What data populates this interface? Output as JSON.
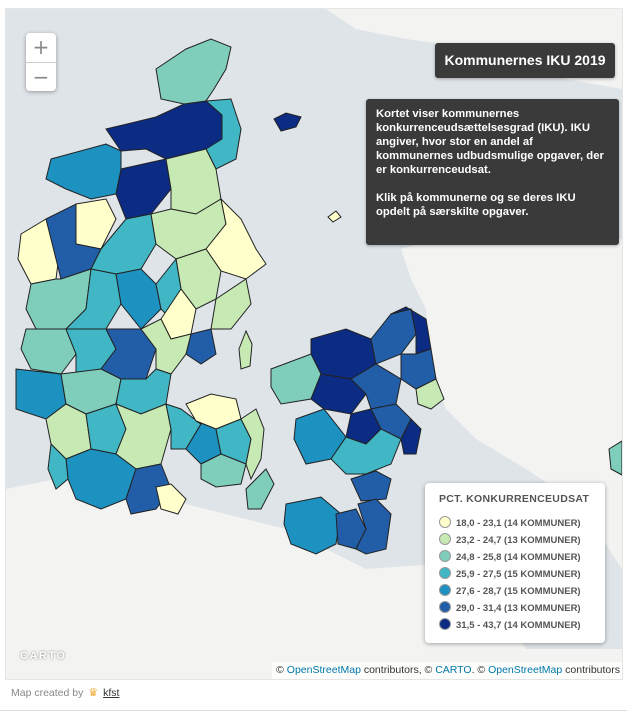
{
  "title": "Kommunernes IKU 2019",
  "info": {
    "paragraph1": "Kortet viser kommunernes konkurrenceudsættelsesgrad (IKU). IKU angiver, hvor stor en andel af kommunernes udbudsmulige opgaver, der er konkurrenceudsat.",
    "paragraph2": "Klik på kommunerne og se deres IKU opdelt på særskilte opgaver."
  },
  "zoom": {
    "in_label": "+",
    "out_label": "−"
  },
  "legend": {
    "title": "PCT. KONKURRENCEUDSAT",
    "items": [
      {
        "label": "18,0 - 23,1 (14 KOMMUNER)",
        "color": "#ffffcc"
      },
      {
        "label": "23,2 - 24,7 (13 KOMMUNER)",
        "color": "#c7e9b4"
      },
      {
        "label": "24,8 - 25,8 (14 KOMMUNER)",
        "color": "#7fcdbb"
      },
      {
        "label": "25,9 - 27,5 (15 KOMMUNER)",
        "color": "#41b6c4"
      },
      {
        "label": "27,6 - 28,7 (15 KOMMUNER)",
        "color": "#1d91c0"
      },
      {
        "label": "29,0 - 31,4 (13 KOMMUNER)",
        "color": "#225ea8"
      },
      {
        "label": "31,5 - 43,7 (14 KOMMUNER)",
        "color": "#0c2c84"
      }
    ]
  },
  "basemap": {
    "logo": "CARTO",
    "water_color": "#dfe4e8",
    "land_color": "#f3f3f1"
  },
  "attribution": {
    "prefix": "©",
    "osm1": "OpenStreetMap",
    "mid1": "contributors, ©",
    "carto": "CARTO",
    "mid2": ". ©",
    "osm2": "OpenStreetMap",
    "suffix": "contributors"
  },
  "footer": {
    "text": "Map created by",
    "link": "kfst",
    "icon": "crown-icon"
  }
}
